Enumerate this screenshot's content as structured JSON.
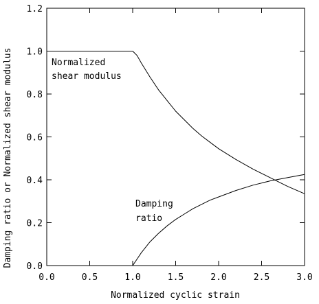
{
  "chart_data": {
    "type": "line",
    "xlabel": "Normalized cyclic strain",
    "ylabel": "Damping ratio or Normalized shear modulus",
    "xlim": [
      0,
      3.0
    ],
    "ylim": [
      0,
      1.2
    ],
    "x_ticks": [
      "0.0",
      "0.5",
      "1.0",
      "1.5",
      "2.0",
      "2.5",
      "3.0"
    ],
    "y_ticks": [
      "0.0",
      "0.2",
      "0.4",
      "0.6",
      "0.8",
      "1.0",
      "1.2"
    ],
    "grid": false,
    "series": [
      {
        "name": "Normalized shear modulus",
        "x": [
          0,
          0.5,
          0.95,
          1.0,
          1.05,
          1.1,
          1.2,
          1.3,
          1.4,
          1.5,
          1.6,
          1.7,
          1.8,
          1.9,
          2.0,
          2.2,
          2.4,
          2.6,
          2.8,
          3.0
        ],
        "y": [
          1.0,
          1.0,
          1.0,
          1.0,
          0.98,
          0.945,
          0.88,
          0.82,
          0.77,
          0.72,
          0.68,
          0.64,
          0.605,
          0.575,
          0.545,
          0.495,
          0.45,
          0.41,
          0.37,
          0.335
        ]
      },
      {
        "name": "Damping ratio",
        "x": [
          0,
          0.5,
          0.95,
          1.0,
          1.05,
          1.1,
          1.2,
          1.3,
          1.4,
          1.5,
          1.6,
          1.7,
          1.8,
          1.9,
          2.0,
          2.2,
          2.4,
          2.6,
          2.8,
          3.0
        ],
        "y": [
          0,
          0,
          0,
          0,
          0.03,
          0.06,
          0.11,
          0.15,
          0.185,
          0.215,
          0.24,
          0.265,
          0.285,
          0.305,
          0.32,
          0.35,
          0.375,
          0.395,
          0.41,
          0.425
        ]
      }
    ],
    "annotations": [
      {
        "lines": [
          "Normalized",
          "shear modulus"
        ]
      },
      {
        "lines": [
          "Damping",
          "ratio"
        ]
      }
    ]
  }
}
